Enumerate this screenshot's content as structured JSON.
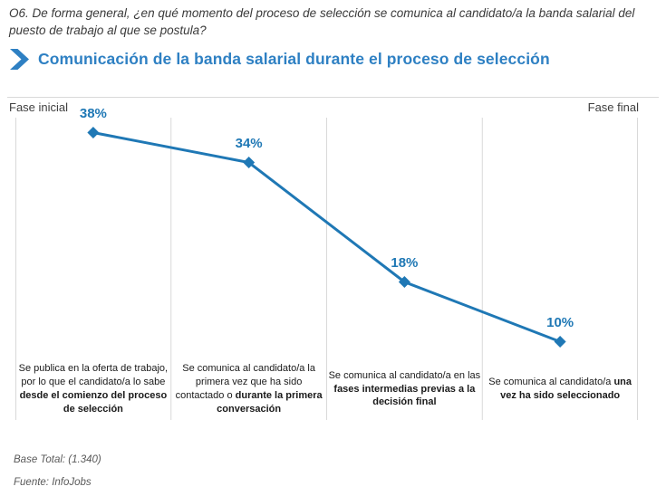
{
  "question": "O6. De forma general, ¿en qué momento del proceso de selección se comunica al candidato/a la banda salarial del puesto de trabajo al que se postula?",
  "title": "Comunicación de la banda salarial durante el proceso de selección",
  "icons": {
    "section_chevron": "chevron-right-icon"
  },
  "colors": {
    "title_blue": "#2e80c3",
    "line_blue": "#1f78b5",
    "grid_gray": "#d9d9d9"
  },
  "footer": {
    "base_total": "Base Total: (1.340)",
    "source": "Fuente: InfoJobs"
  },
  "chart_data": {
    "type": "line",
    "title": "Comunicación de la banda salarial durante el proceso de selección",
    "phase_start_label": "Fase inicial",
    "phase_end_label": "Fase final",
    "values": [
      38,
      34,
      18,
      10
    ],
    "value_labels": [
      "38%",
      "34%",
      "18%",
      "10%"
    ],
    "ylim": [
      0,
      40
    ],
    "grid": "vertical-category-separators",
    "legend": "none",
    "categories": [
      {
        "text": "Se publica en la oferta de trabajo, por lo que el candidato/a lo sabe ",
        "bold": "desde el comienzo del proceso de selección"
      },
      {
        "text": "Se comunica al candidato/a la primera vez que ha sido contactado o ",
        "bold": "durante la primera conversación"
      },
      {
        "text": "Se comunica al candidato/a en las ",
        "bold": "fases intermedias previas a la decisión final"
      },
      {
        "text": "Se comunica al candidato/a ",
        "bold": "una vez ha sido seleccionado"
      }
    ]
  }
}
